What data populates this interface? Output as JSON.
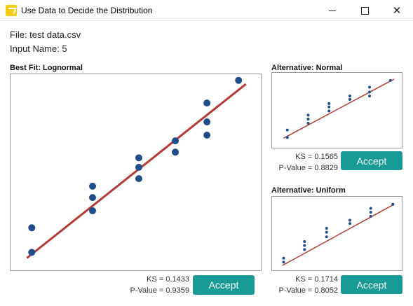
{
  "window": {
    "title": "Use Data to Decide the Distribution",
    "minimize_glyph": "—",
    "maximize_glyph": "☐",
    "close_glyph": "✕",
    "icon": "app-distribution-icon"
  },
  "file_info": {
    "file_label": "File: test data.csv",
    "input_label": "Input Name: 5"
  },
  "colors": {
    "line": "#b33a35",
    "point": "#1f4e8c",
    "button": "#189a96",
    "frame": "#9a9a9a"
  },
  "best_fit": {
    "title": "Best Fit: Lognormal",
    "ks": "KS = 0.1433",
    "p_value": "P-Value = 0.9359",
    "accept_label": "Accept"
  },
  "alt_normal": {
    "title": "Alternative: Normal",
    "ks": "KS = 0.1565",
    "p_value": "P-Value = 0.8829",
    "accept_label": "Accept"
  },
  "alt_uniform": {
    "title": "Alternative: Uniform",
    "ks": "KS = 0.1714",
    "p_value": "P-Value = 0.8052",
    "accept_label": "Accept"
  },
  "chart_data": [
    {
      "type": "scatter",
      "title": "Best Fit: Lognormal",
      "xlim": [
        0,
        1
      ],
      "ylim": [
        0,
        1
      ],
      "points": [
        {
          "x": 0.07,
          "y": 0.08
        },
        {
          "x": 0.07,
          "y": 0.21
        },
        {
          "x": 0.32,
          "y": 0.3
        },
        {
          "x": 0.32,
          "y": 0.37
        },
        {
          "x": 0.32,
          "y": 0.43
        },
        {
          "x": 0.51,
          "y": 0.47
        },
        {
          "x": 0.51,
          "y": 0.53
        },
        {
          "x": 0.51,
          "y": 0.58
        },
        {
          "x": 0.66,
          "y": 0.61
        },
        {
          "x": 0.66,
          "y": 0.67
        },
        {
          "x": 0.79,
          "y": 0.7
        },
        {
          "x": 0.79,
          "y": 0.77
        },
        {
          "x": 0.79,
          "y": 0.87
        },
        {
          "x": 0.92,
          "y": 0.99
        }
      ],
      "fit_line": [
        [
          0.05,
          0.05
        ],
        [
          0.95,
          0.97
        ]
      ]
    },
    {
      "type": "scatter",
      "title": "Alternative: Normal",
      "xlim": [
        0,
        1
      ],
      "ylim": [
        0,
        1
      ],
      "points": [
        {
          "x": 0.09,
          "y": 0.11
        },
        {
          "x": 0.09,
          "y": 0.22
        },
        {
          "x": 0.26,
          "y": 0.32
        },
        {
          "x": 0.26,
          "y": 0.38
        },
        {
          "x": 0.26,
          "y": 0.44
        },
        {
          "x": 0.43,
          "y": 0.5
        },
        {
          "x": 0.43,
          "y": 0.56
        },
        {
          "x": 0.43,
          "y": 0.61
        },
        {
          "x": 0.6,
          "y": 0.67
        },
        {
          "x": 0.6,
          "y": 0.72
        },
        {
          "x": 0.76,
          "y": 0.72
        },
        {
          "x": 0.76,
          "y": 0.78
        },
        {
          "x": 0.76,
          "y": 0.85
        },
        {
          "x": 0.93,
          "y": 0.95
        }
      ],
      "fit_line": [
        [
          0.06,
          0.1
        ],
        [
          0.96,
          0.97
        ]
      ]
    },
    {
      "type": "scatter",
      "title": "Alternative: Uniform",
      "xlim": [
        0,
        1
      ],
      "ylim": [
        0,
        1
      ],
      "points": [
        {
          "x": 0.06,
          "y": 0.08
        },
        {
          "x": 0.06,
          "y": 0.14
        },
        {
          "x": 0.23,
          "y": 0.27
        },
        {
          "x": 0.23,
          "y": 0.33
        },
        {
          "x": 0.23,
          "y": 0.39
        },
        {
          "x": 0.41,
          "y": 0.46
        },
        {
          "x": 0.41,
          "y": 0.53
        },
        {
          "x": 0.41,
          "y": 0.59
        },
        {
          "x": 0.6,
          "y": 0.66
        },
        {
          "x": 0.6,
          "y": 0.71
        },
        {
          "x": 0.77,
          "y": 0.77
        },
        {
          "x": 0.77,
          "y": 0.83
        },
        {
          "x": 0.77,
          "y": 0.89
        },
        {
          "x": 0.95,
          "y": 0.95
        }
      ],
      "fit_line": [
        [
          0.05,
          0.03
        ],
        [
          0.95,
          0.94
        ]
      ]
    }
  ]
}
